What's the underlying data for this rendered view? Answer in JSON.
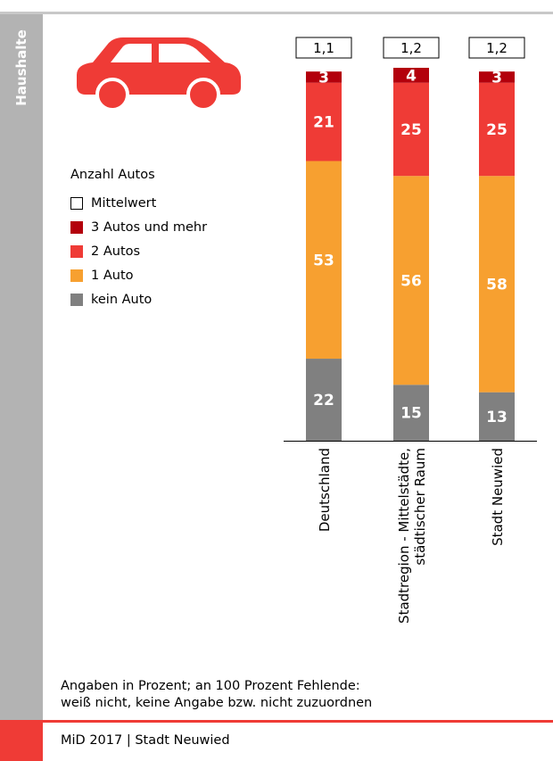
{
  "side_label": "Haushalte",
  "legend": {
    "title": "Anzahl Autos",
    "items": [
      {
        "label": "Mittelwert",
        "color": "#ffffff"
      },
      {
        "label": "3 Autos und mehr",
        "color": "#b3000c"
      },
      {
        "label": "2 Autos",
        "color": "#ef3b36"
      },
      {
        "label": "1 Auto",
        "color": "#f7a030"
      },
      {
        "label": "kein Auto",
        "color": "#808080"
      }
    ]
  },
  "chart_data": {
    "type": "bar",
    "stacked": true,
    "categories": [
      [
        "Deutschland"
      ],
      [
        "Stadtregion - Mittelstädte,",
        "städtischer Raum"
      ],
      [
        "Stadt Neuwied"
      ]
    ],
    "means": [
      "1,1",
      "1,2",
      "1,2"
    ],
    "series": [
      {
        "name": "kein Auto",
        "color": "#808080",
        "values": [
          22,
          15,
          13
        ]
      },
      {
        "name": "1 Auto",
        "color": "#f7a030",
        "values": [
          53,
          56,
          58
        ]
      },
      {
        "name": "2 Autos",
        "color": "#ef3b36",
        "values": [
          21,
          25,
          25
        ]
      },
      {
        "name": "3 Autos und mehr",
        "color": "#b3000c",
        "values": [
          3,
          4,
          3
        ]
      }
    ],
    "ylim": [
      0,
      100
    ],
    "grid": false
  },
  "note_lines": [
    "Angaben in Prozent; an 100 Prozent Fehlende:",
    "weiß nicht, keine Angabe bzw. nicht zuzuordnen"
  ],
  "footer": "MiD 2017 | Stadt Neuwied",
  "icon": "car-icon"
}
